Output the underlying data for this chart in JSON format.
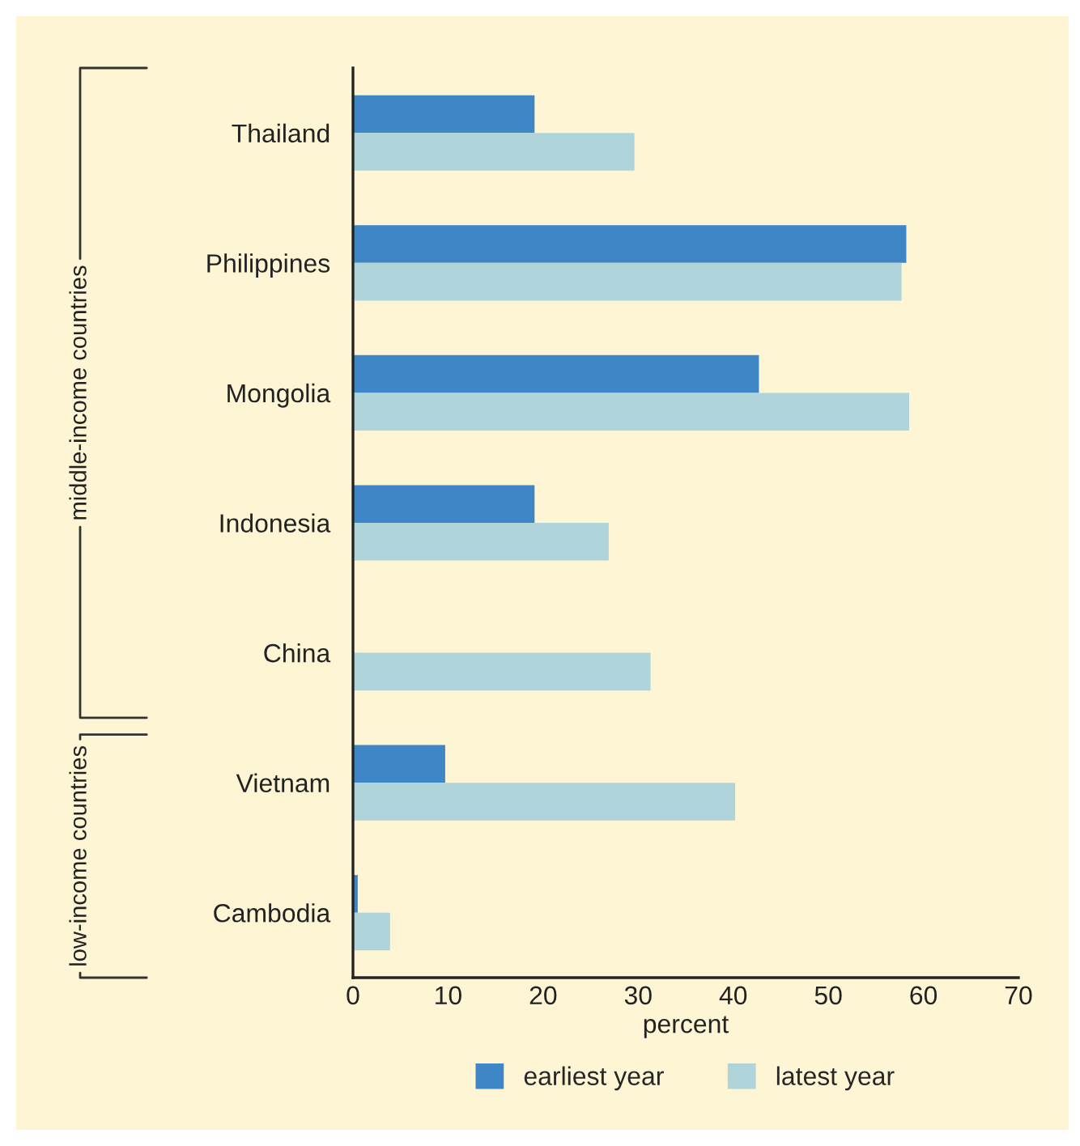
{
  "chart_data": {
    "type": "bar",
    "orientation": "horizontal",
    "categories": [
      "Thailand",
      "Philippines",
      "Mongolia",
      "Indonesia",
      "China",
      "Vietnam",
      "Cambodia"
    ],
    "series": [
      {
        "name": "earliest year",
        "color": "#3f86c6",
        "values": [
          19.1,
          58.2,
          42.7,
          19.1,
          null,
          9.7,
          0.5
        ]
      },
      {
        "name": "latest year",
        "color": "#afd4da",
        "values": [
          29.6,
          57.7,
          58.5,
          26.9,
          31.3,
          40.2,
          3.9
        ]
      }
    ],
    "xlabel": "percent",
    "xlim": [
      0,
      70
    ],
    "xticks": [
      0,
      10,
      20,
      30,
      40,
      50,
      60,
      70
    ],
    "annotations": [
      "middle-income countries",
      "low-income countries"
    ],
    "grid": false,
    "legend": "bottom"
  }
}
